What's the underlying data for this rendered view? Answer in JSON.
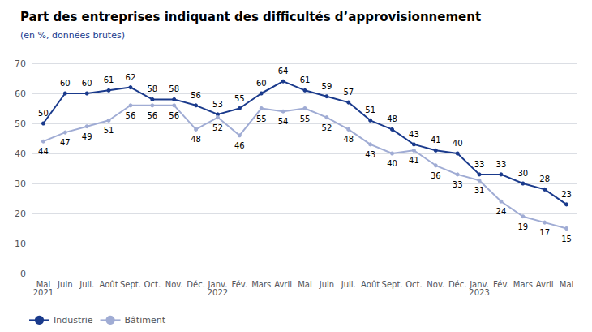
{
  "chart_data": {
    "type": "line",
    "title": "Part des entreprises indiquant des difficultés d’approvisionnement",
    "subtitle": "(en %, données brutes)",
    "categories": [
      "Mai\n2021",
      "Juin",
      "Juil.",
      "Août",
      "Sept.",
      "Oct.",
      "Nov.",
      "Déc.",
      "Janv.\n2022",
      "Fév.",
      "Mars",
      "Avril",
      "Mai",
      "Juin",
      "Juil.",
      "Août",
      "Sept.",
      "Oct.",
      "Nov.",
      "Déc.",
      "Janv.\n2023",
      "Fév.",
      "Mars",
      "Avril",
      "Mai"
    ],
    "series": [
      {
        "name": "Industrie",
        "color": "#1a3a8c",
        "values": [
          50,
          60,
          60,
          61,
          62,
          58,
          58,
          56,
          53,
          55,
          60,
          64,
          61,
          59,
          57,
          51,
          48,
          43,
          41,
          40,
          33,
          33,
          30,
          28,
          23
        ]
      },
      {
        "name": "Bâtiment",
        "color": "#a0acd4",
        "values": [
          44,
          47,
          49,
          51,
          56,
          56,
          56,
          48,
          52,
          46,
          55,
          54,
          55,
          52,
          48,
          43,
          40,
          41,
          36,
          33,
          31,
          24,
          19,
          17,
          15
        ]
      }
    ],
    "ylim": [
      0,
      70
    ],
    "yticks": [
      0,
      10,
      20,
      30,
      40,
      50,
      60,
      70
    ],
    "grid": true,
    "data_labels": true,
    "marker": "circle",
    "legend": "lower left"
  }
}
